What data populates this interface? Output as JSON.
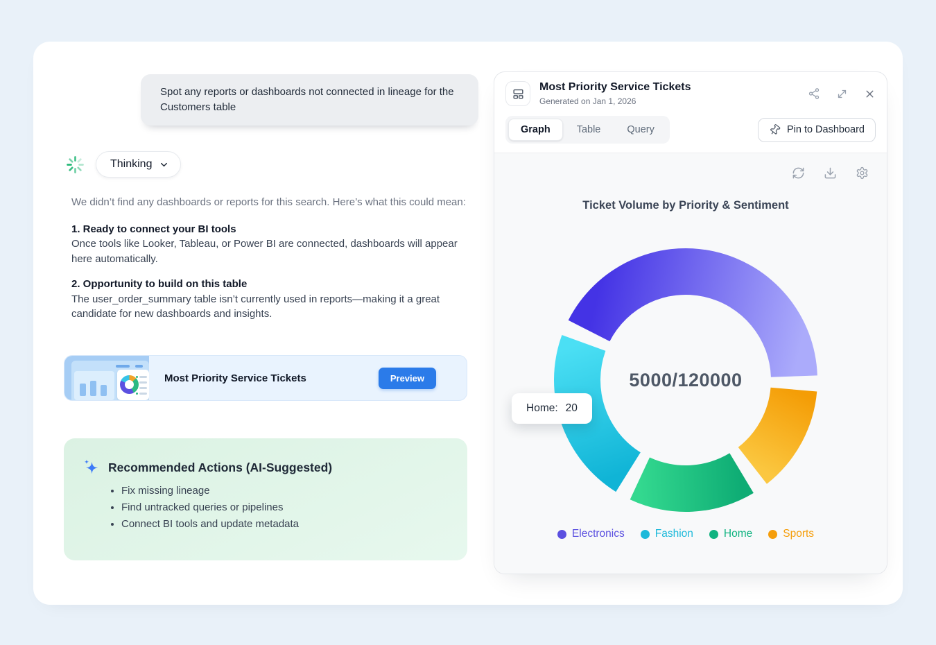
{
  "chat": {
    "user_query": "Spot any reports or dashboards not connected in lineage for the Customers table",
    "thinking_label": "Thinking",
    "intro": "We didn’t find any dashboards or reports for this search. Here’s what this could mean:",
    "point1_title": "1. Ready to connect your BI tools",
    "point1_body": "Once tools like Looker, Tableau, or Power BI are connected, dashboards will appear here automatically.",
    "point2_title": "2. Opportunity to build on this table",
    "point2_body": "The user_order_summary table isn’t currently used in reports—making it a great candidate for new dashboards and insights.",
    "ticket_card": {
      "title": "Most Priority Service Tickets",
      "preview_label": "Preview"
    },
    "recommended": {
      "title": "Recommended Actions (AI-Suggested)",
      "items": [
        "Fix missing lineage",
        "Find untracked queries or pipelines",
        "Connect BI tools and update metadata"
      ]
    }
  },
  "panel": {
    "title": "Most Priority Service Tickets",
    "subtitle": "Generated on Jan 1, 2026",
    "tabs": [
      {
        "label": "Graph",
        "active": true
      },
      {
        "label": "Table",
        "active": false
      },
      {
        "label": "Query",
        "active": false
      }
    ],
    "pin_label": "Pin to Dashboard",
    "icons": {
      "header_left": "layout-dashboard-icon",
      "header_actions": [
        "share-icon",
        "expand-icon",
        "close-icon"
      ],
      "chart_toolbar": [
        "refresh-icon",
        "download-icon",
        "settings-icon"
      ]
    }
  },
  "chart_data": {
    "type": "pie",
    "variant": "donut",
    "title": "Ticket Volume by Priority & Sentiment",
    "center_label": "5000/120000",
    "tooltip": {
      "label": "Home:",
      "value": "20"
    },
    "legend_position": "bottom",
    "donut": {
      "outer_radius": 190,
      "inner_radius": 123
    },
    "segments": [
      {
        "label": "Electronics",
        "start_deg": 297,
        "end_deg": 448,
        "share_pct_est": 46,
        "color_from": "#4433E5",
        "color_to": "#ABABFB",
        "legend_color": "#5B50E0"
      },
      {
        "label": "Fashion",
        "start_deg": 212,
        "end_deg": 290,
        "share_pct_est": 24,
        "color_from": "#10B4D6",
        "color_to": "#4BDFF4",
        "legend_color": "#1CB9DA"
      },
      {
        "label": "Home",
        "start_deg": 149,
        "end_deg": 205,
        "share_pct_est": 16,
        "color_from": "#0EAC74",
        "color_to": "#33D88F",
        "legend_color": "#10B380"
      },
      {
        "label": "Sports",
        "start_deg": 95,
        "end_deg": 142,
        "share_pct_est": 14,
        "color_from": "#F49D06",
        "color_to": "#FBC740",
        "legend_color": "#F59E0B"
      }
    ]
  }
}
